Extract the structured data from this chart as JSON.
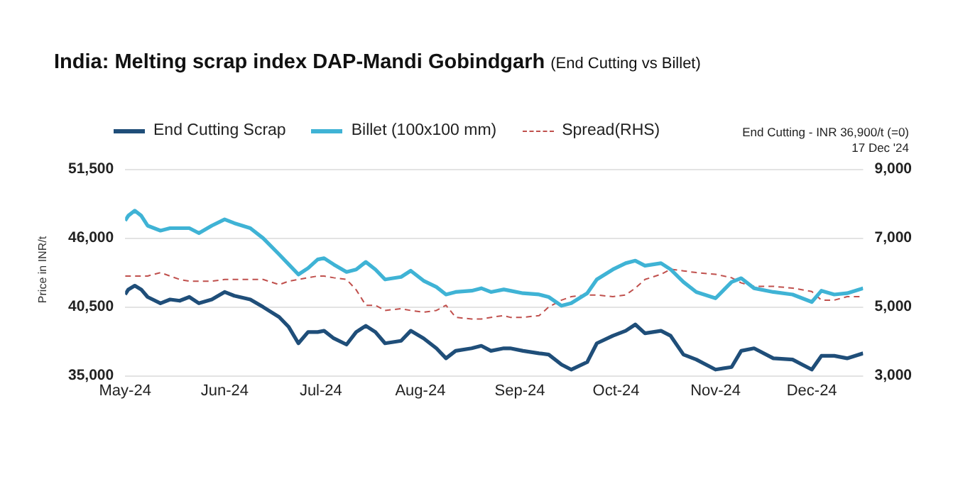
{
  "chart_data": {
    "type": "line",
    "title": "India: Melting scrap index DAP-Mandi Gobindgarh",
    "subtitle": "(End Cutting vs Billet)",
    "ylabel": "Price in INR/t",
    "annotations": [
      "End Cutting - INR 36,900/t (=0)",
      "17 Dec '24"
    ],
    "x": [
      "2024-05-01",
      "2024-05-02",
      "2024-05-04",
      "2024-05-06",
      "2024-05-08",
      "2024-05-12",
      "2024-05-15",
      "2024-05-18",
      "2024-05-21",
      "2024-05-24",
      "2024-05-28",
      "2024-06-01",
      "2024-06-04",
      "2024-06-09",
      "2024-06-13",
      "2024-06-18",
      "2024-06-21",
      "2024-06-24",
      "2024-06-27",
      "2024-06-30",
      "2024-07-02",
      "2024-07-05",
      "2024-07-09",
      "2024-07-12",
      "2024-07-15",
      "2024-07-18",
      "2024-07-21",
      "2024-07-26",
      "2024-07-29",
      "2024-08-02",
      "2024-08-06",
      "2024-08-09",
      "2024-08-12",
      "2024-08-17",
      "2024-08-20",
      "2024-08-23",
      "2024-08-27",
      "2024-08-29",
      "2024-09-02",
      "2024-09-07",
      "2024-09-10",
      "2024-09-14",
      "2024-09-17",
      "2024-09-22",
      "2024-09-25",
      "2024-09-30",
      "2024-10-04",
      "2024-10-07",
      "2024-10-10",
      "2024-10-15",
      "2024-10-18",
      "2024-10-22",
      "2024-10-26",
      "2024-11-01",
      "2024-11-06",
      "2024-11-09",
      "2024-11-13",
      "2024-11-19",
      "2024-11-25",
      "2024-12-01",
      "2024-12-04",
      "2024-12-08",
      "2024-12-12",
      "2024-12-17"
    ],
    "series": [
      {
        "name": "End Cutting Scrap",
        "color": "#1f4e79",
        "values": [
          41500,
          41900,
          42200,
          41900,
          41300,
          40800,
          41100,
          41000,
          41300,
          40800,
          41100,
          41700,
          41400,
          41100,
          40500,
          39700,
          38900,
          37600,
          38500,
          38500,
          38600,
          38000,
          37500,
          38500,
          39000,
          38500,
          37600,
          37800,
          38600,
          38000,
          37200,
          36400,
          37000,
          37200,
          37400,
          37000,
          37200,
          37200,
          37000,
          36800,
          36700,
          35900,
          35500,
          36100,
          37600,
          38200,
          38600,
          39100,
          38400,
          38600,
          38200,
          36700,
          36300,
          35500,
          35700,
          37000,
          37200,
          36400,
          36300,
          35500,
          36600,
          36600,
          36400,
          36800
        ]
      },
      {
        "name": "Billet (100x100 mm)",
        "color": "#3fb3d5",
        "values": [
          47400,
          47800,
          48200,
          47800,
          47000,
          46600,
          46800,
          46800,
          46800,
          46400,
          47000,
          47500,
          47200,
          46800,
          46000,
          44700,
          43900,
          43100,
          43600,
          44300,
          44400,
          43900,
          43300,
          43500,
          44100,
          43500,
          42700,
          42900,
          43400,
          42600,
          42100,
          41500,
          41700,
          41800,
          42000,
          41700,
          41900,
          41800,
          41600,
          41500,
          41300,
          40600,
          40800,
          41600,
          42700,
          43500,
          44000,
          44200,
          43800,
          44000,
          43500,
          42500,
          41700,
          41200,
          42500,
          42800,
          42000,
          41700,
          41500,
          40900,
          41800,
          41500,
          41600,
          42000
        ]
      },
      {
        "name": "Spread(RHS)",
        "color": "#c0504d",
        "axis": "y2",
        "line_style": "dashed",
        "values": [
          5900,
          5900,
          5900,
          5900,
          5900,
          6000,
          5900,
          5800,
          5750,
          5750,
          5750,
          5800,
          5800,
          5800,
          5800,
          5650,
          5750,
          5800,
          5850,
          5900,
          5900,
          5850,
          5800,
          5500,
          5050,
          5050,
          4900,
          4950,
          4900,
          4850,
          4900,
          5050,
          4700,
          4650,
          4650,
          4700,
          4750,
          4700,
          4700,
          4750,
          5000,
          5200,
          5300,
          5350,
          5350,
          5300,
          5350,
          5550,
          5800,
          5950,
          6100,
          6050,
          6000,
          5950,
          5850,
          5700,
          5600,
          5600,
          5550,
          5450,
          5200,
          5200,
          5300,
          5300
        ]
      }
    ],
    "xlim": [
      "2024-05-01",
      "2024-12-17"
    ],
    "xticks": [
      {
        "value": "2024-05-01",
        "label": "May-24"
      },
      {
        "value": "2024-06-01",
        "label": "Jun-24"
      },
      {
        "value": "2024-07-01",
        "label": "Jul-24"
      },
      {
        "value": "2024-08-01",
        "label": "Aug-24"
      },
      {
        "value": "2024-09-01",
        "label": "Sep-24"
      },
      {
        "value": "2024-10-01",
        "label": "Oct-24"
      },
      {
        "value": "2024-11-01",
        "label": "Nov-24"
      },
      {
        "value": "2024-12-01",
        "label": "Dec-24"
      }
    ],
    "ylim": [
      35000,
      51500
    ],
    "yticks": [
      {
        "value": 35000,
        "label": "35,000"
      },
      {
        "value": 40500,
        "label": "40,500"
      },
      {
        "value": 46000,
        "label": "46,000"
      },
      {
        "value": 51500,
        "label": "51,500"
      }
    ],
    "y2lim": [
      3000,
      9000
    ],
    "y2ticks": [
      {
        "value": 3000,
        "label": "3,000"
      },
      {
        "value": 5000,
        "label": "5,000"
      },
      {
        "value": 7000,
        "label": "7,000"
      },
      {
        "value": 9000,
        "label": "9,000"
      }
    ],
    "grid": "y",
    "legend": "top left",
    "marker": "none"
  }
}
